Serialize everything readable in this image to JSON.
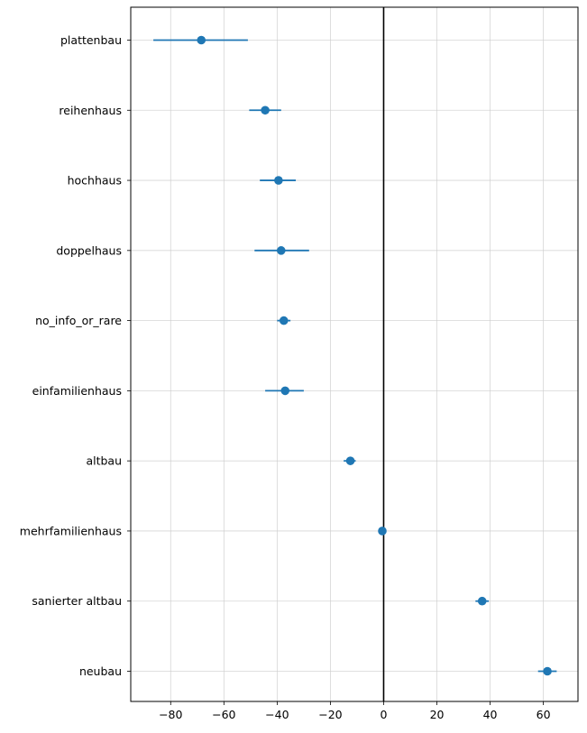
{
  "chart_data": {
    "type": "scatter",
    "title": "",
    "xlabel": "",
    "ylabel": "",
    "xlim": [
      -95,
      73
    ],
    "xticks": [
      -80,
      -60,
      -40,
      -20,
      0,
      20,
      40,
      60
    ],
    "xtick_labels": [
      "−80",
      "−60",
      "−40",
      "−20",
      "0",
      "20",
      "40",
      "60"
    ],
    "grid": true,
    "reference_line_x": 0,
    "marker_color": "#1f77b4",
    "reference_line_color": "#000000",
    "categories": [
      "plattenbau",
      "reihenhaus",
      "hochhaus",
      "doppelhaus",
      "no_info_or_rare",
      "einfamilienhaus",
      "altbau",
      "mehrfamilienhaus",
      "sanierter altbau",
      "neubau"
    ],
    "values": [
      -68.5,
      -44.5,
      -39.5,
      -38.5,
      -37.5,
      -37.0,
      -12.5,
      -0.5,
      37.0,
      61.5
    ],
    "ci_low": [
      -86.5,
      -50.5,
      -46.5,
      -48.5,
      -40.0,
      -44.5,
      -15.0,
      -2.0,
      34.5,
      58.0
    ],
    "ci_high": [
      -51.0,
      -38.5,
      -33.0,
      -28.0,
      -35.0,
      -30.0,
      -10.5,
      1.0,
      39.5,
      65.0
    ]
  }
}
